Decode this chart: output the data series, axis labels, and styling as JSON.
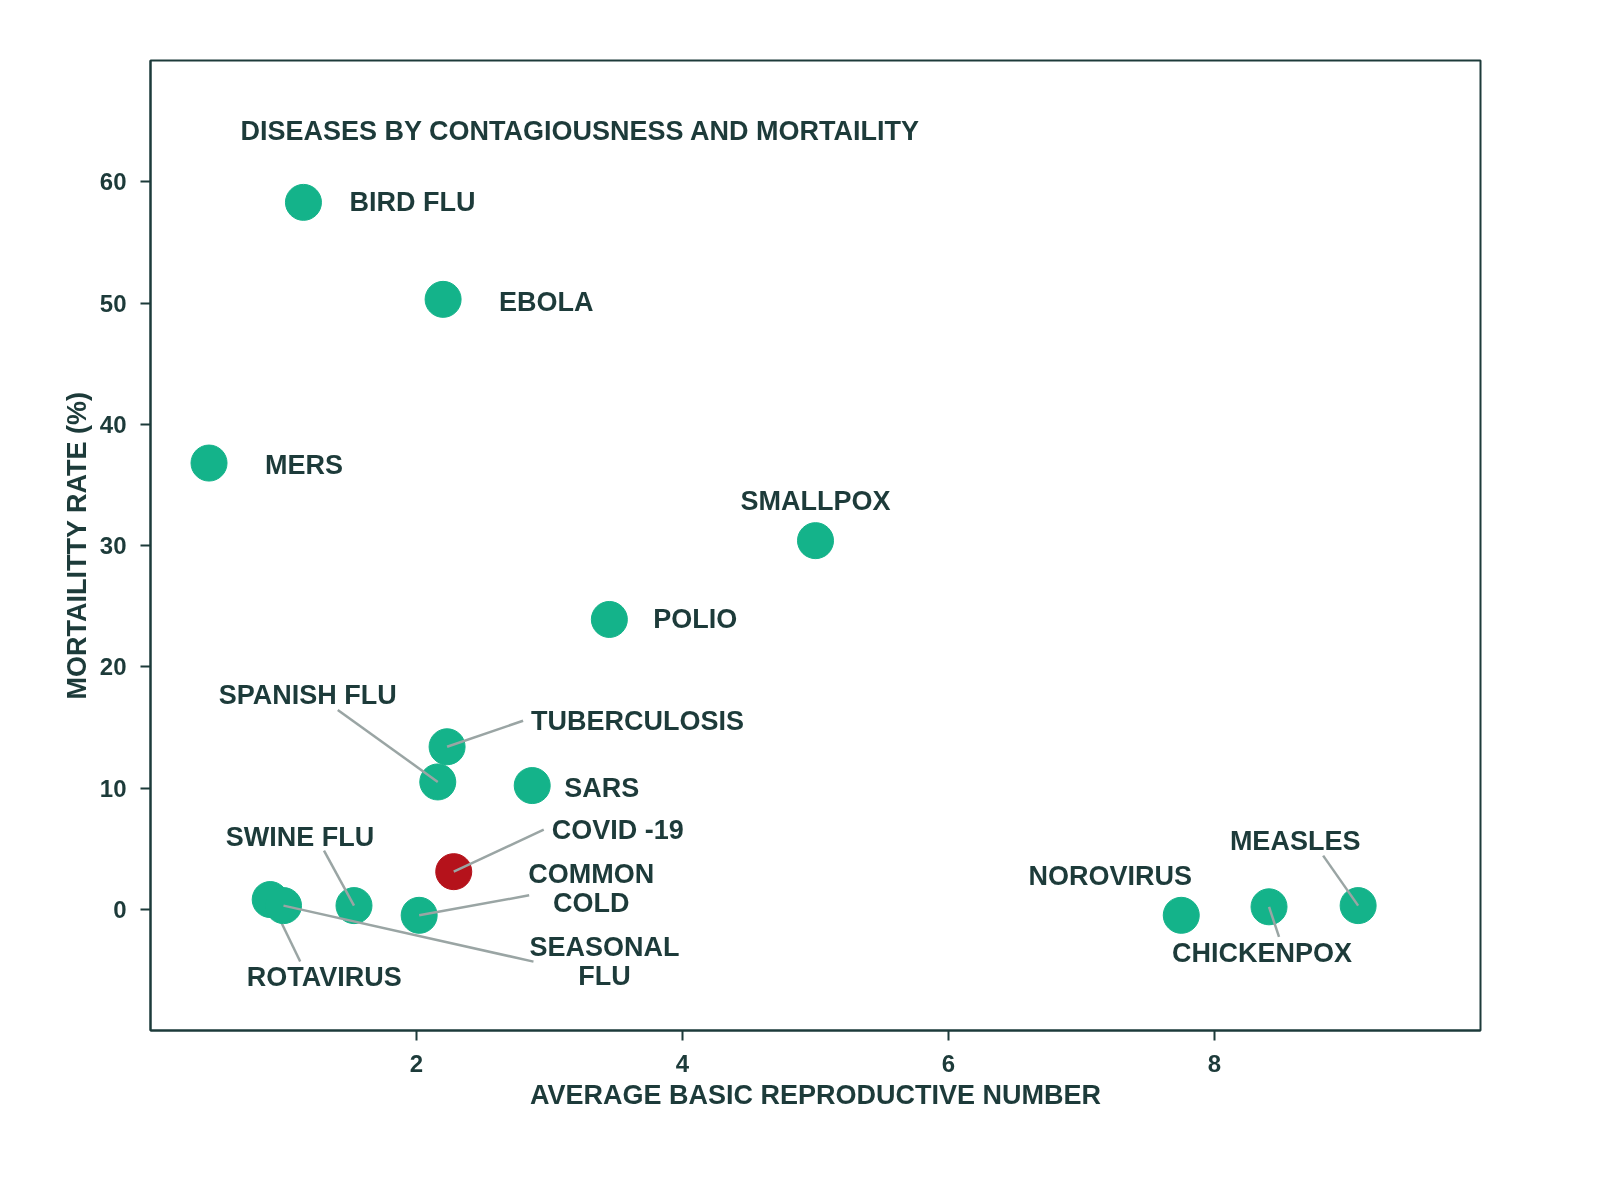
{
  "chart_data": {
    "type": "scatter",
    "title": "DISEASES BY CONTAGIOUSNESS AND MORTAILITY",
    "xlabel": "AVERAGE BASIC REPRODUCTIVE NUMBER",
    "ylabel": "MORTAILITTY RATE (%)",
    "xlim": [
      0,
      10
    ],
    "ylim": [
      -10,
      70
    ],
    "xticks": [
      2,
      4,
      6,
      8
    ],
    "yticks": [
      0,
      10,
      20,
      30,
      40,
      50,
      60
    ],
    "grid": false,
    "marker": "circle",
    "series": [
      {
        "name": "BIRD FLU",
        "color": "#14b38a",
        "x": [
          1.15
        ],
        "values": [
          58.3
        ]
      },
      {
        "name": "EBOLA",
        "color": "#14b38a",
        "x": [
          2.2
        ],
        "values": [
          50.3
        ]
      },
      {
        "name": "MERS",
        "color": "#14b38a",
        "x": [
          0.44
        ],
        "values": [
          36.8
        ]
      },
      {
        "name": "SMALLPOX",
        "color": "#14b38a",
        "x": [
          5.0
        ],
        "values": [
          30.4
        ]
      },
      {
        "name": "POLIO",
        "color": "#14b38a",
        "x": [
          3.45
        ],
        "values": [
          23.9
        ]
      },
      {
        "name": "TUBERCULOSIS",
        "color": "#14b38a",
        "x": [
          2.23
        ],
        "values": [
          13.4
        ]
      },
      {
        "name": "SPANISH FLU",
        "color": "#14b38a",
        "x": [
          2.16
        ],
        "values": [
          10.5
        ]
      },
      {
        "name": "SARS",
        "color": "#14b38a",
        "x": [
          2.87
        ],
        "values": [
          10.2
        ]
      },
      {
        "name": "COVID -19",
        "color": "#b5121b",
        "x": [
          2.28
        ],
        "values": [
          3.1
        ]
      },
      {
        "name": "SWINE FLU",
        "color": "#14b38a",
        "x": [
          1.53
        ],
        "values": [
          0.3
        ]
      },
      {
        "name": "COMMON COLD",
        "color": "#14b38a",
        "x": [
          2.02
        ],
        "values": [
          -0.5
        ]
      },
      {
        "name": "ROTAVIRUS",
        "color": "#14b38a",
        "x": [
          0.9
        ],
        "values": [
          0.8
        ]
      },
      {
        "name": "SEASONAL FLU",
        "color": "#14b38a",
        "x": [
          1.0
        ],
        "values": [
          0.3
        ]
      },
      {
        "name": "NOROVIRUS",
        "color": "#14b38a",
        "x": [
          7.75
        ],
        "values": [
          -0.5
        ]
      },
      {
        "name": "CHICKENPOX",
        "color": "#14b38a",
        "x": [
          8.41
        ],
        "values": [
          0.2
        ]
      },
      {
        "name": "MEASLES",
        "color": "#14b38a",
        "x": [
          9.08
        ],
        "values": [
          0.3
        ]
      }
    ]
  }
}
